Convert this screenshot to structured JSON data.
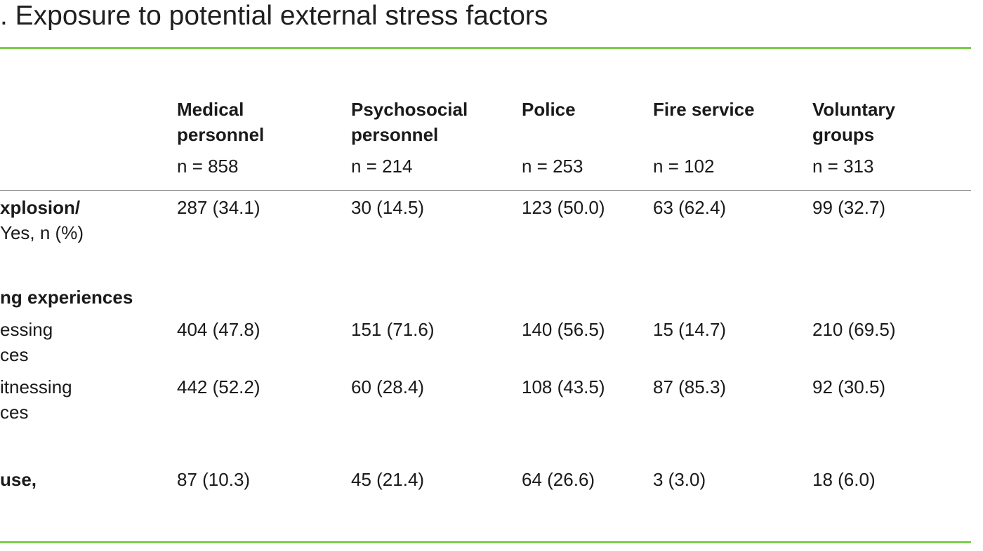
{
  "title": ". Exposure to potential external stress factors",
  "columns": [
    {
      "label_line1": "Medical",
      "label_line2": "personnel",
      "n": "n = 858"
    },
    {
      "label_line1": "Psychosocial",
      "label_line2": "personnel",
      "n": "n = 214"
    },
    {
      "label_line1": "Police",
      "label_line2": "",
      "n": "n = 253"
    },
    {
      "label_line1": "Fire service",
      "label_line2": "",
      "n": "n = 102"
    },
    {
      "label_line1": "Voluntary",
      "label_line2": "groups",
      "n": "n = 313"
    }
  ],
  "rows": [
    {
      "label_line1": "xplosion/",
      "label_line2": " Yes, n (%)",
      "values": [
        "287 (34.1)",
        "30 (14.5)",
        "123 (50.0)",
        "63 (62.4)",
        "99 (32.7)"
      ]
    },
    {
      "section_heading": "ng experiences"
    },
    {
      "label_line1": "essing",
      "label_line2": "ces",
      "values": [
        "404 (47.8)",
        "151 (71.6)",
        "140 (56.5)",
        "15 (14.7)",
        "210 (69.5)"
      ]
    },
    {
      "label_line1": "itnessing",
      "label_line2": "ces",
      "values": [
        "442 (52.2)",
        "60 (28.4)",
        "108 (43.5)",
        "87 (85.3)",
        "92 (30.5)"
      ]
    },
    {
      "label_line1": "use,",
      "values": [
        "87 (10.3)",
        "45 (21.4)",
        "64 (26.6)",
        "3 (3.0)",
        "18 (6.0)"
      ]
    }
  ]
}
